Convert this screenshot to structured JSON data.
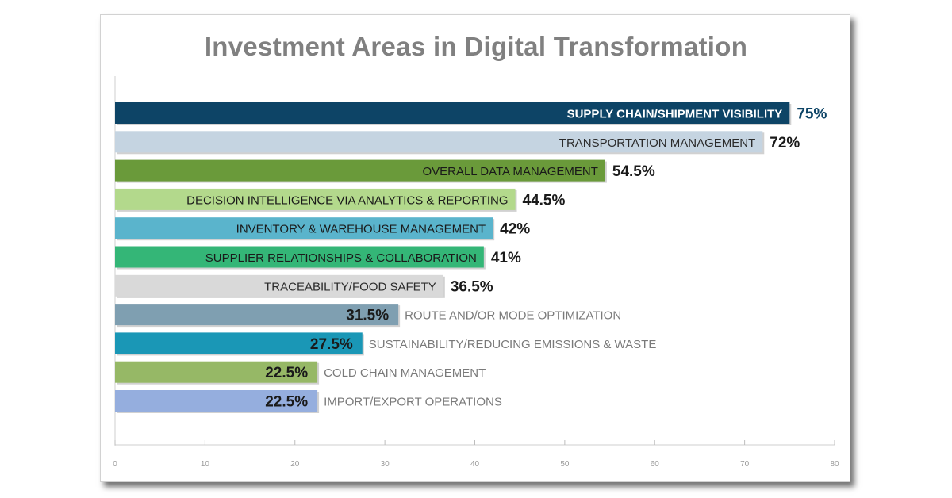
{
  "chart_data": {
    "type": "bar",
    "orientation": "horizontal",
    "title": "Investment Areas in Digital Transformation",
    "xlabel": "",
    "ylabel": "",
    "xlim": [
      0,
      80
    ],
    "x_ticks": [
      "0",
      "10",
      "20",
      "30",
      "40",
      "50",
      "60",
      "70",
      "80"
    ],
    "grid": false,
    "bars": [
      {
        "category": "SUPPLY CHAIN/SHIPMENT VISIBILITY",
        "value": 75,
        "value_label": "75%",
        "color": "#0d4466",
        "label_color": "#ffffff",
        "value_color": "#0d4466",
        "label_inside": true
      },
      {
        "category": "TRANSPORTATION MANAGEMENT",
        "value": 72,
        "value_label": "72%",
        "color": "#c5d4e1",
        "label_color": "#2b2b2b",
        "value_color": "#1a1a1a",
        "label_inside": true
      },
      {
        "category": "OVERALL DATA MANAGEMENT",
        "value": 54.5,
        "value_label": "54.5%",
        "color": "#6a9a3a",
        "label_color": "#1a1a1a",
        "value_color": "#1a1a1a",
        "label_inside": true
      },
      {
        "category": "DECISION INTELLIGENCE VIA ANALYTICS & REPORTING",
        "value": 44.5,
        "value_label": "44.5%",
        "color": "#b3d98c",
        "label_color": "#1a1a1a",
        "value_color": "#1a1a1a",
        "label_inside": true
      },
      {
        "category": "INVENTORY & WAREHOUSE MANAGEMENT",
        "value": 42,
        "value_label": "42%",
        "color": "#5ab4cc",
        "label_color": "#1a1a1a",
        "value_color": "#1a1a1a",
        "label_inside": true
      },
      {
        "category": "SUPPLIER RELATIONSHIPS & COLLABORATION",
        "value": 41,
        "value_label": "41%",
        "color": "#34b677",
        "label_color": "#1a1a1a",
        "value_color": "#1a1a1a",
        "label_inside": true
      },
      {
        "category": "TRACEABILITY/FOOD SAFETY",
        "value": 36.5,
        "value_label": "36.5%",
        "color": "#d9d9d9",
        "label_color": "#2b2b2b",
        "value_color": "#1a1a1a",
        "label_inside": true
      },
      {
        "category": "ROUTE AND/OR MODE OPTIMIZATION",
        "value": 31.5,
        "value_label": "31.5%",
        "color": "#7f9fb1",
        "label_color": "#7a7a7a",
        "value_color": "#1a1a1a",
        "label_inside": false
      },
      {
        "category": "SUSTAINABILITY/REDUCING EMISSIONS & WASTE",
        "value": 27.5,
        "value_label": "27.5%",
        "color": "#1a97b6",
        "label_color": "#7a7a7a",
        "value_color": "#1a1a1a",
        "label_inside": false
      },
      {
        "category": "COLD CHAIN MANAGEMENT",
        "value": 22.5,
        "value_label": "22.5%",
        "color": "#96b866",
        "label_color": "#7a7a7a",
        "value_color": "#1a1a1a",
        "label_inside": false
      },
      {
        "category": "IMPORT/EXPORT OPERATIONS",
        "value": 22.5,
        "value_label": "22.5%",
        "color": "#95aede",
        "label_color": "#7a7a7a",
        "value_color": "#1a1a1a",
        "label_inside": false
      }
    ]
  }
}
